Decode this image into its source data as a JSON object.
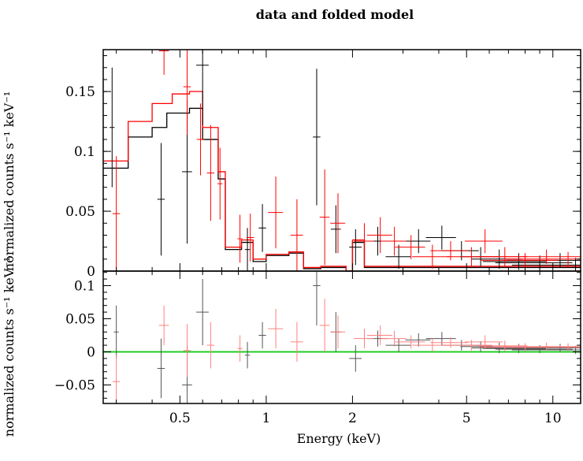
{
  "chart_data": [
    {
      "panel": "top",
      "type": "scatter",
      "title": "data and folded model",
      "ylabel": "normalized counts s⁻¹ keV⁻¹",
      "xscale": "log",
      "xlim": [
        0.27,
        12.5
      ],
      "ylim": [
        0,
        0.185
      ],
      "yticks": [
        0,
        0.05,
        0.1,
        0.15
      ],
      "ytick_labels": [
        "0",
        "0.05",
        "0.1",
        "0.15"
      ],
      "colors": {
        "black": "#000000",
        "red": "#ff0000"
      },
      "series": [
        {
          "color": "black",
          "points": [
            [
              0.29,
              0.12,
              0.02,
              0.05
            ],
            [
              0.43,
              0.06,
              0.03,
              0.047
            ],
            [
              0.53,
              0.083,
              0.04,
              0.06
            ],
            [
              0.6,
              0.172,
              0.05,
              0.05
            ],
            [
              0.86,
              0.018,
              0.02,
              0.018
            ],
            [
              0.97,
              0.036,
              0.03,
              0.02
            ],
            [
              1.5,
              0.112,
              0.03,
              0.057
            ],
            [
              1.75,
              0.035,
              0.04,
              0.02
            ],
            [
              2.05,
              0.02,
              0.05,
              0.015
            ],
            [
              2.45,
              0.025,
              0.08,
              0.012
            ],
            [
              2.9,
              0.012,
              0.1,
              0.01
            ],
            [
              3.4,
              0.025,
              0.1,
              0.01
            ],
            [
              4.1,
              0.028,
              0.12,
              0.01
            ],
            [
              4.8,
              0.017,
              0.15,
              0.008
            ],
            [
              5.6,
              0.012,
              0.15,
              0.008
            ],
            [
              6.5,
              0.01,
              0.2,
              0.008
            ],
            [
              7.6,
              0.008,
              0.25,
              0.007
            ],
            [
              9.0,
              0.007,
              0.3,
              0.006
            ],
            [
              10.6,
              0.009,
              0.35,
              0.006
            ],
            [
              12.0,
              0.005,
              0.4,
              0.006
            ]
          ],
          "model": [
            [
              0.27,
              0.086
            ],
            [
              0.33,
              0.112
            ],
            [
              0.4,
              0.12
            ],
            [
              0.45,
              0.132
            ],
            [
              0.54,
              0.136
            ],
            [
              0.6,
              0.11
            ],
            [
              0.68,
              0.077
            ],
            [
              0.72,
              0.018
            ],
            [
              0.82,
              0.024
            ],
            [
              0.9,
              0.008
            ],
            [
              1.0,
              0.013
            ],
            [
              1.2,
              0.015
            ],
            [
              1.35,
              0.002
            ],
            [
              1.55,
              0.003
            ],
            [
              1.9,
              0.0
            ],
            [
              2.0,
              0.024
            ],
            [
              2.2,
              0.003
            ],
            [
              12.5,
              0.003
            ]
          ]
        },
        {
          "color": "red",
          "points": [
            [
              0.3,
              0.048,
              0.03,
              0.048
            ],
            [
              0.44,
              0.184,
              0.04,
              0.02
            ],
            [
              0.53,
              0.154,
              0.03,
              0.04
            ],
            [
              0.59,
              0.11,
              0.03,
              0.03
            ],
            [
              0.64,
              0.082,
              0.03,
              0.04
            ],
            [
              0.69,
              0.073,
              0.02,
              0.03
            ],
            [
              0.81,
              0.027,
              0.02,
              0.02
            ],
            [
              0.88,
              0.028,
              0.03,
              0.02
            ],
            [
              1.08,
              0.049,
              0.06,
              0.03
            ],
            [
              1.28,
              0.03,
              0.05,
              0.03
            ],
            [
              1.6,
              0.045,
              0.04,
              0.04
            ],
            [
              1.78,
              0.04,
              0.06,
              0.025
            ],
            [
              2.2,
              0.025,
              0.08,
              0.015
            ],
            [
              2.5,
              0.03,
              0.1,
              0.015
            ],
            [
              2.8,
              0.025,
              0.1,
              0.012
            ],
            [
              3.2,
              0.02,
              0.12,
              0.01
            ],
            [
              3.8,
              0.012,
              0.15,
              0.01
            ],
            [
              4.4,
              0.017,
              0.15,
              0.008
            ],
            [
              5.2,
              0.012,
              0.18,
              0.008
            ],
            [
              5.8,
              0.025,
              0.15,
              0.01
            ],
            [
              6.8,
              0.012,
              0.2,
              0.008
            ],
            [
              8.0,
              0.009,
              0.3,
              0.006
            ],
            [
              9.5,
              0.012,
              0.35,
              0.006
            ],
            [
              11.3,
              0.01,
              0.4,
              0.006
            ]
          ],
          "model": [
            [
              0.27,
              0.092
            ],
            [
              0.33,
              0.125
            ],
            [
              0.4,
              0.14
            ],
            [
              0.47,
              0.148
            ],
            [
              0.54,
              0.15
            ],
            [
              0.6,
              0.12
            ],
            [
              0.68,
              0.083
            ],
            [
              0.72,
              0.02
            ],
            [
              0.82,
              0.026
            ],
            [
              0.9,
              0.01
            ],
            [
              1.0,
              0.014
            ],
            [
              1.2,
              0.016
            ],
            [
              1.35,
              0.003
            ],
            [
              1.55,
              0.004
            ],
            [
              1.9,
              0.0
            ],
            [
              2.0,
              0.026
            ],
            [
              2.2,
              0.004
            ],
            [
              12.5,
              0.004
            ]
          ]
        }
      ]
    },
    {
      "panel": "bottom",
      "type": "scatter",
      "ylabel": "normalized counts s⁻¹ keV⁻¹",
      "xlabel": "Energy (keV)",
      "xscale": "log",
      "xlim": [
        0.27,
        12.5
      ],
      "ylim": [
        -0.078,
        0.122
      ],
      "xticks": [
        0.5,
        1,
        2,
        5,
        10
      ],
      "xtick_labels": [
        "0.5",
        "1",
        "2",
        "5",
        "10"
      ],
      "yticks": [
        -0.05,
        0,
        0.05,
        0.1
      ],
      "ytick_labels": [
        "−0.05",
        "0",
        "0.05",
        "0.1"
      ],
      "zero_line_color": "#22cc22",
      "colors": {
        "black": "#555555",
        "red": "#ff8080"
      },
      "series": [
        {
          "color": "black",
          "points": [
            [
              0.3,
              0.03,
              0.02,
              0.04
            ],
            [
              0.43,
              -0.025,
              0.03,
              0.045
            ],
            [
              0.53,
              -0.05,
              0.04,
              0.06
            ],
            [
              0.6,
              0.06,
              0.05,
              0.05
            ],
            [
              0.86,
              -0.005,
              0.02,
              0.02
            ],
            [
              0.97,
              0.025,
              0.03,
              0.02
            ],
            [
              1.5,
              0.1,
              0.03,
              0.06
            ],
            [
              1.75,
              0.03,
              0.04,
              0.03
            ],
            [
              2.05,
              -0.01,
              0.05,
              0.02
            ],
            [
              2.45,
              0.02,
              0.08,
              0.012
            ],
            [
              2.9,
              0.01,
              0.1,
              0.01
            ],
            [
              3.4,
              0.018,
              0.1,
              0.01
            ],
            [
              4.1,
              0.02,
              0.12,
              0.01
            ],
            [
              4.8,
              0.01,
              0.15,
              0.008
            ],
            [
              5.6,
              0.008,
              0.15,
              0.008
            ],
            [
              6.5,
              0.006,
              0.2,
              0.008
            ],
            [
              7.6,
              0.005,
              0.25,
              0.007
            ],
            [
              9.0,
              0.004,
              0.3,
              0.006
            ],
            [
              10.6,
              0.006,
              0.35,
              0.006
            ],
            [
              12.0,
              0.003,
              0.4,
              0.006
            ]
          ]
        },
        {
          "color": "red",
          "points": [
            [
              0.3,
              -0.045,
              0.03,
              0.04
            ],
            [
              0.44,
              0.04,
              0.04,
              0.03
            ],
            [
              0.53,
              0.002,
              0.03,
              0.04
            ],
            [
              0.64,
              0.01,
              0.03,
              0.035
            ],
            [
              0.81,
              0.005,
              0.02,
              0.02
            ],
            [
              1.08,
              0.035,
              0.06,
              0.03
            ],
            [
              1.28,
              0.015,
              0.05,
              0.03
            ],
            [
              1.6,
              0.04,
              0.04,
              0.04
            ],
            [
              1.78,
              0.03,
              0.06,
              0.025
            ],
            [
              2.2,
              0.02,
              0.08,
              0.015
            ],
            [
              2.5,
              0.025,
              0.1,
              0.015
            ],
            [
              2.8,
              0.02,
              0.1,
              0.012
            ],
            [
              3.2,
              0.015,
              0.12,
              0.01
            ],
            [
              3.8,
              0.01,
              0.15,
              0.01
            ],
            [
              4.4,
              0.014,
              0.15,
              0.008
            ],
            [
              5.2,
              0.01,
              0.18,
              0.008
            ],
            [
              5.8,
              0.015,
              0.15,
              0.01
            ],
            [
              6.8,
              0.009,
              0.2,
              0.008
            ],
            [
              8.0,
              0.007,
              0.3,
              0.006
            ],
            [
              9.5,
              0.008,
              0.35,
              0.006
            ],
            [
              11.3,
              0.007,
              0.4,
              0.006
            ]
          ]
        }
      ]
    }
  ]
}
